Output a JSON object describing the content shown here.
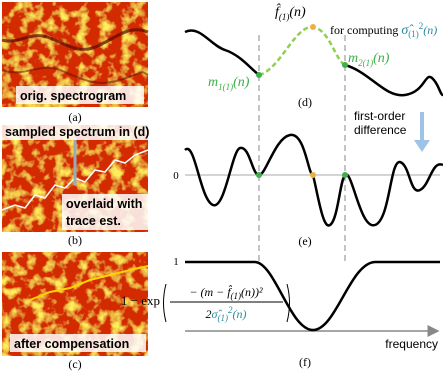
{
  "panels": {
    "a": {
      "caption": "(a)",
      "label": "orig. spectrogram"
    },
    "b": {
      "caption": "(b)",
      "label_top": "sampled spectrum in (d)",
      "label_bottom_1": "overlaid with",
      "label_bottom_2": "trace est."
    },
    "c": {
      "caption": "(c)",
      "label": "after compensation"
    },
    "d": {
      "caption": "(d)",
      "f_hat": {
        "base": "f̂",
        "sub": "(1)",
        "arg": "(n)"
      },
      "note": {
        "text": "for computing ",
        "base": "σ̂",
        "sub": "(1)",
        "sup": "2",
        "arg": "(n)"
      },
      "m1": {
        "base": "m",
        "sub": "1(1)",
        "arg": "(n)"
      },
      "m2": {
        "base": "m",
        "sub": "2(1)",
        "arg": "(n)"
      }
    },
    "arrow_label": {
      "line1": "first-order",
      "line2": "difference"
    },
    "e": {
      "caption": "(e)",
      "zero_label": "0"
    },
    "f": {
      "caption": "(f)",
      "one_label": "1",
      "x_label": "frequency",
      "formula": {
        "prefix": "1 − exp",
        "num": "− (m − ",
        "num_f": "f̂",
        "num_sub": "(1)",
        "num_end": "(n))²",
        "den": "2",
        "den_s": "σ̂",
        "den_sub": "(1)",
        "den_sup": "2",
        "den_arg": "(n)"
      }
    }
  }
}
